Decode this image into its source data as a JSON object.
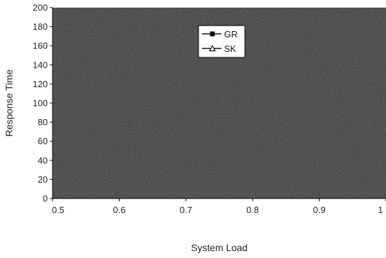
{
  "chart_data": {
    "type": "line",
    "title": "",
    "xlabel": "System Load",
    "ylabel": "Response Time",
    "xlim": [
      0.5,
      1
    ],
    "ylim": [
      0,
      200
    ],
    "x_ticks": [
      0.5,
      0.6,
      0.7,
      0.8,
      0.9,
      1
    ],
    "x_tick_labels": [
      "0.5",
      "0.6",
      "0.7",
      "0.8",
      "0.9",
      "1"
    ],
    "y_ticks": [
      0,
      20,
      40,
      60,
      80,
      100,
      120,
      140,
      160,
      180,
      200
    ],
    "y_tick_labels": [
      "0",
      "20",
      "40",
      "60",
      "80",
      "100",
      "120",
      "140",
      "160",
      "180",
      "200"
    ],
    "legend_position": "top-center",
    "grid": false,
    "plot_background": "#2b2b2b",
    "series": [
      {
        "name": "GR",
        "marker": "square",
        "color": "#111111",
        "x": [],
        "y": []
      },
      {
        "name": "SK",
        "marker": "triangle",
        "color": "#111111",
        "x": [],
        "y": []
      }
    ]
  }
}
